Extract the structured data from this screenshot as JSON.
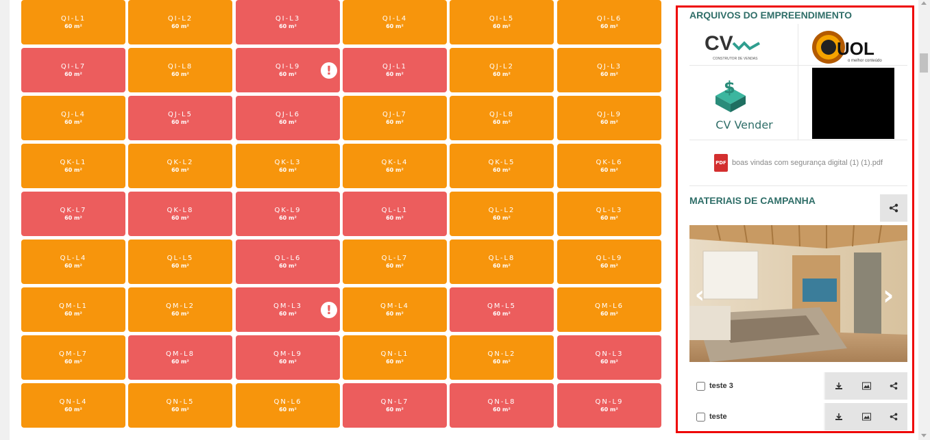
{
  "grid": {
    "area_label": "60 m²",
    "units": [
      {
        "code": "",
        "status": "orange"
      },
      {
        "code": "",
        "status": "orange"
      },
      {
        "code": "",
        "status": "orange"
      },
      {
        "code": "",
        "status": "orange"
      },
      {
        "code": "",
        "status": "orange"
      },
      {
        "code": "",
        "status": "orange"
      },
      {
        "code": "QI-L1",
        "status": "orange"
      },
      {
        "code": "QI-L2",
        "status": "orange"
      },
      {
        "code": "QI-L3",
        "status": "red"
      },
      {
        "code": "QI-L4",
        "status": "orange"
      },
      {
        "code": "QI-L5",
        "status": "orange"
      },
      {
        "code": "QI-L6",
        "status": "orange"
      },
      {
        "code": "QI-L7",
        "status": "red"
      },
      {
        "code": "QI-L8",
        "status": "orange"
      },
      {
        "code": "QI-L9",
        "status": "red",
        "alert": true
      },
      {
        "code": "QJ-L1",
        "status": "red"
      },
      {
        "code": "QJ-L2",
        "status": "orange"
      },
      {
        "code": "QJ-L3",
        "status": "orange"
      },
      {
        "code": "QJ-L4",
        "status": "orange"
      },
      {
        "code": "QJ-L5",
        "status": "red"
      },
      {
        "code": "QJ-L6",
        "status": "red"
      },
      {
        "code": "QJ-L7",
        "status": "orange"
      },
      {
        "code": "QJ-L8",
        "status": "orange"
      },
      {
        "code": "QJ-L9",
        "status": "orange"
      },
      {
        "code": "QK-L1",
        "status": "orange"
      },
      {
        "code": "QK-L2",
        "status": "orange"
      },
      {
        "code": "QK-L3",
        "status": "orange"
      },
      {
        "code": "QK-L4",
        "status": "orange"
      },
      {
        "code": "QK-L5",
        "status": "orange"
      },
      {
        "code": "QK-L6",
        "status": "orange"
      },
      {
        "code": "QK-L7",
        "status": "red"
      },
      {
        "code": "QK-L8",
        "status": "red"
      },
      {
        "code": "QK-L9",
        "status": "red"
      },
      {
        "code": "QL-L1",
        "status": "red"
      },
      {
        "code": "QL-L2",
        "status": "orange"
      },
      {
        "code": "QL-L3",
        "status": "orange"
      },
      {
        "code": "QL-L4",
        "status": "orange"
      },
      {
        "code": "QL-L5",
        "status": "orange"
      },
      {
        "code": "QL-L6",
        "status": "red"
      },
      {
        "code": "QL-L7",
        "status": "orange"
      },
      {
        "code": "QL-L8",
        "status": "orange"
      },
      {
        "code": "QL-L9",
        "status": "orange"
      },
      {
        "code": "QM-L1",
        "status": "orange"
      },
      {
        "code": "QM-L2",
        "status": "orange"
      },
      {
        "code": "QM-L3",
        "status": "red",
        "alert": true
      },
      {
        "code": "QM-L4",
        "status": "orange"
      },
      {
        "code": "QM-L5",
        "status": "red"
      },
      {
        "code": "QM-L6",
        "status": "orange"
      },
      {
        "code": "QM-L7",
        "status": "orange"
      },
      {
        "code": "QM-L8",
        "status": "red"
      },
      {
        "code": "QM-L9",
        "status": "red"
      },
      {
        "code": "QN-L1",
        "status": "orange"
      },
      {
        "code": "QN-L2",
        "status": "orange"
      },
      {
        "code": "QN-L3",
        "status": "red"
      },
      {
        "code": "QN-L4",
        "status": "orange"
      },
      {
        "code": "QN-L5",
        "status": "orange"
      },
      {
        "code": "QN-L6",
        "status": "orange"
      },
      {
        "code": "QN-L7",
        "status": "red"
      },
      {
        "code": "QN-L8",
        "status": "red"
      },
      {
        "code": "QN-L9",
        "status": "red"
      }
    ],
    "colors": {
      "available": "#f7950c",
      "unavailable": "#ec5d5d"
    }
  },
  "sidebar": {
    "files_title": "ARQUIVOS DO EMPREENDIMENTO",
    "logos": {
      "cv_text": "CV",
      "cv_subtitle": "CONSTRUTOR DE VENDAS",
      "uol_text": "UOL",
      "uol_subtitle": "o melhor conteúdo",
      "cv_vender_text": "CV Vender"
    },
    "pdf_icon_label": "PDF",
    "pdf_file": "boas vindas com segurança digital (1) (1).pdf",
    "campaign_title": "MATERIAIS DE CAMPANHA",
    "materials": [
      {
        "name": "teste 3"
      },
      {
        "name": "teste"
      }
    ],
    "partial_next_text": "Ant..."
  }
}
